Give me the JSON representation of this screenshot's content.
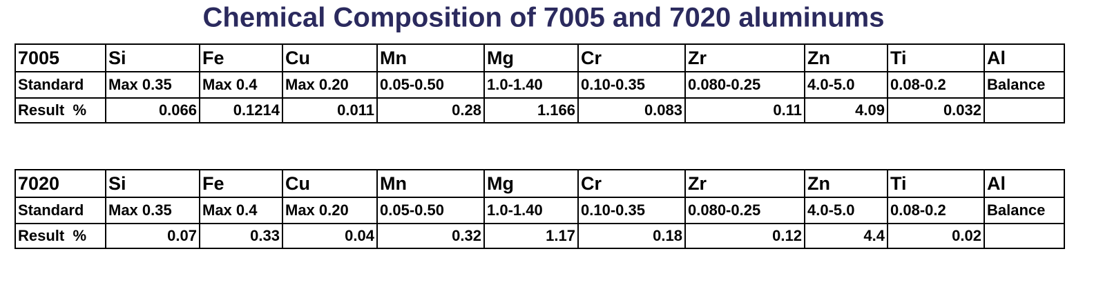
{
  "title": "Chemical Composition of 7005 and 7020 aluminums",
  "tables": [
    {
      "header": [
        "7005",
        "Si",
        "Fe",
        "Cu",
        "Mn",
        "Mg",
        "Cr",
        "Zr",
        "Zn",
        "Ti",
        "Al"
      ],
      "rows": [
        [
          "Standard",
          "Max 0.35",
          "Max 0.4",
          "Max 0.20",
          "0.05-0.50",
          "1.0-1.40",
          "0.10-0.35",
          "0.080-0.25",
          "4.0-5.0",
          "0.08-0.2",
          "Balance"
        ],
        [
          "Result  %",
          "0.066",
          "0.1214",
          "0.011",
          "0.28",
          "1.166",
          "0.083",
          "0.11",
          "4.09",
          "0.032"
        ]
      ]
    },
    {
      "header": [
        "7020",
        "Si",
        "Fe",
        "Cu",
        "Mn",
        "Mg",
        "Cr",
        "Zr",
        "Zn",
        "Ti",
        "Al"
      ],
      "rows": [
        [
          "Standard",
          "Max 0.35",
          "Max 0.4",
          "Max 0.20",
          "0.05-0.50",
          "1.0-1.40",
          "0.10-0.35",
          "0.080-0.25",
          "4.0-5.0",
          "0.08-0.2",
          "Balance"
        ],
        [
          "Result  %",
          "0.07",
          "0.33",
          "0.04",
          "0.32",
          "1.17",
          "0.18",
          "0.12",
          "4.4",
          "0.02"
        ]
      ]
    }
  ]
}
